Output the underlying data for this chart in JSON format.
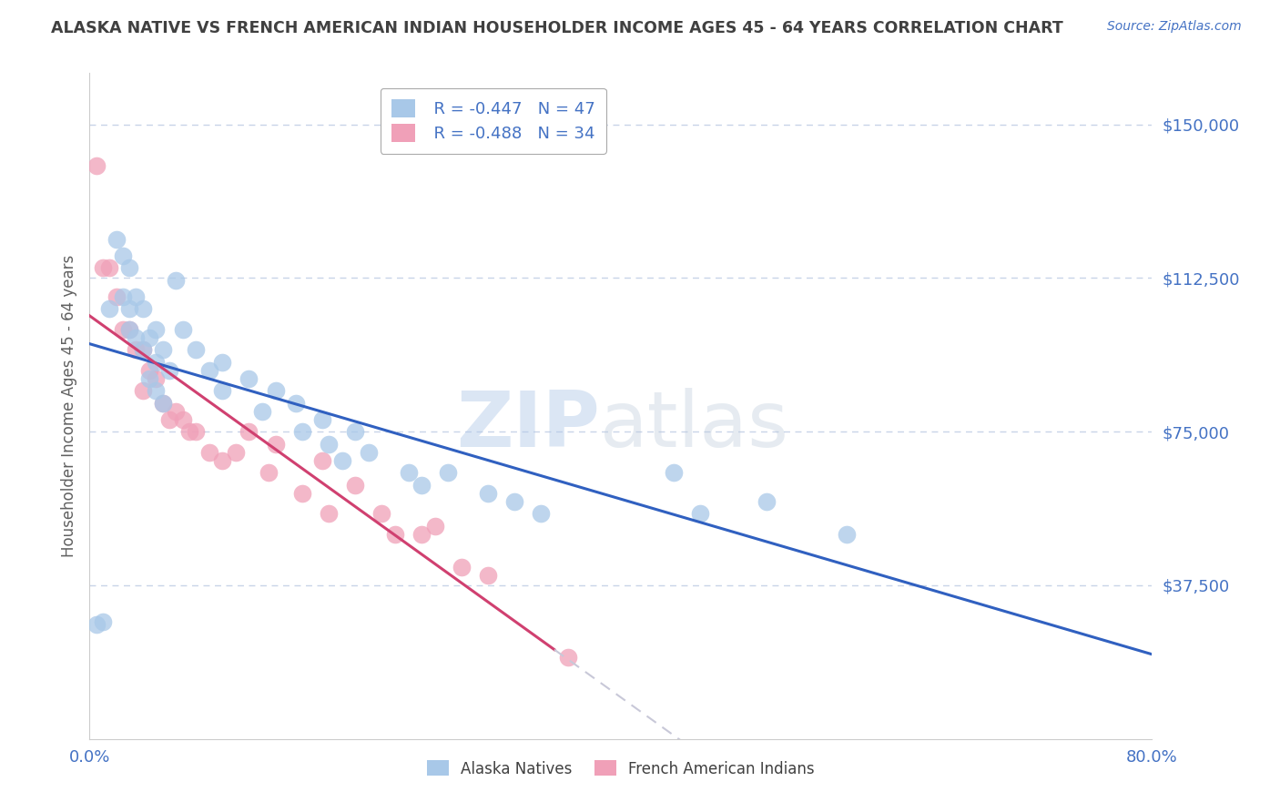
{
  "title": "ALASKA NATIVE VS FRENCH AMERICAN INDIAN HOUSEHOLDER INCOME AGES 45 - 64 YEARS CORRELATION CHART",
  "source": "Source: ZipAtlas.com",
  "ylabel": "Householder Income Ages 45 - 64 years",
  "xlim": [
    0.0,
    0.8
  ],
  "ylim": [
    0,
    162500
  ],
  "yticks": [
    37500,
    75000,
    112500,
    150000
  ],
  "ytick_labels": [
    "$37,500",
    "$75,000",
    "$112,500",
    "$150,000"
  ],
  "xticks": [
    0.0,
    0.1,
    0.2,
    0.3,
    0.4,
    0.5,
    0.6,
    0.7,
    0.8
  ],
  "xtick_labels": [
    "0.0%",
    "",
    "",
    "",
    "",
    "",
    "",
    "",
    "80.0%"
  ],
  "background_color": "#ffffff",
  "watermark_zip": "ZIP",
  "watermark_atlas": "atlas",
  "legend_r1": "R = -0.447",
  "legend_n1": "N = 47",
  "legend_r2": "R = -0.488",
  "legend_n2": "N = 34",
  "blue_scatter_color": "#a8c8e8",
  "pink_scatter_color": "#f0a0b8",
  "blue_line_color": "#3060c0",
  "pink_line_color": "#d04070",
  "pink_dash_color": "#c8c8d8",
  "grid_color": "#c8d4e8",
  "title_color": "#404040",
  "ylabel_color": "#606060",
  "tick_label_color": "#4472c4",
  "source_color": "#4472c4",
  "alaska_natives_x": [
    0.005,
    0.01,
    0.015,
    0.02,
    0.025,
    0.025,
    0.03,
    0.03,
    0.03,
    0.035,
    0.035,
    0.04,
    0.04,
    0.045,
    0.045,
    0.05,
    0.05,
    0.05,
    0.055,
    0.055,
    0.06,
    0.065,
    0.07,
    0.08,
    0.09,
    0.1,
    0.1,
    0.12,
    0.13,
    0.14,
    0.155,
    0.16,
    0.175,
    0.18,
    0.19,
    0.2,
    0.21,
    0.24,
    0.25,
    0.27,
    0.3,
    0.32,
    0.34,
    0.44,
    0.46,
    0.51,
    0.57
  ],
  "alaska_natives_y": [
    28000,
    28500,
    105000,
    122000,
    118000,
    108000,
    115000,
    105000,
    100000,
    108000,
    98000,
    105000,
    95000,
    98000,
    88000,
    100000,
    92000,
    85000,
    95000,
    82000,
    90000,
    112000,
    100000,
    95000,
    90000,
    92000,
    85000,
    88000,
    80000,
    85000,
    82000,
    75000,
    78000,
    72000,
    68000,
    75000,
    70000,
    65000,
    62000,
    65000,
    60000,
    58000,
    55000,
    65000,
    55000,
    58000,
    50000
  ],
  "french_indians_x": [
    0.005,
    0.01,
    0.015,
    0.02,
    0.025,
    0.03,
    0.035,
    0.04,
    0.04,
    0.045,
    0.05,
    0.055,
    0.06,
    0.065,
    0.07,
    0.075,
    0.08,
    0.09,
    0.1,
    0.11,
    0.12,
    0.135,
    0.14,
    0.16,
    0.175,
    0.18,
    0.2,
    0.22,
    0.23,
    0.25,
    0.26,
    0.28,
    0.3,
    0.36
  ],
  "french_indians_y": [
    140000,
    115000,
    115000,
    108000,
    100000,
    100000,
    95000,
    95000,
    85000,
    90000,
    88000,
    82000,
    78000,
    80000,
    78000,
    75000,
    75000,
    70000,
    68000,
    70000,
    75000,
    65000,
    72000,
    60000,
    68000,
    55000,
    62000,
    55000,
    50000,
    50000,
    52000,
    42000,
    40000,
    20000
  ]
}
